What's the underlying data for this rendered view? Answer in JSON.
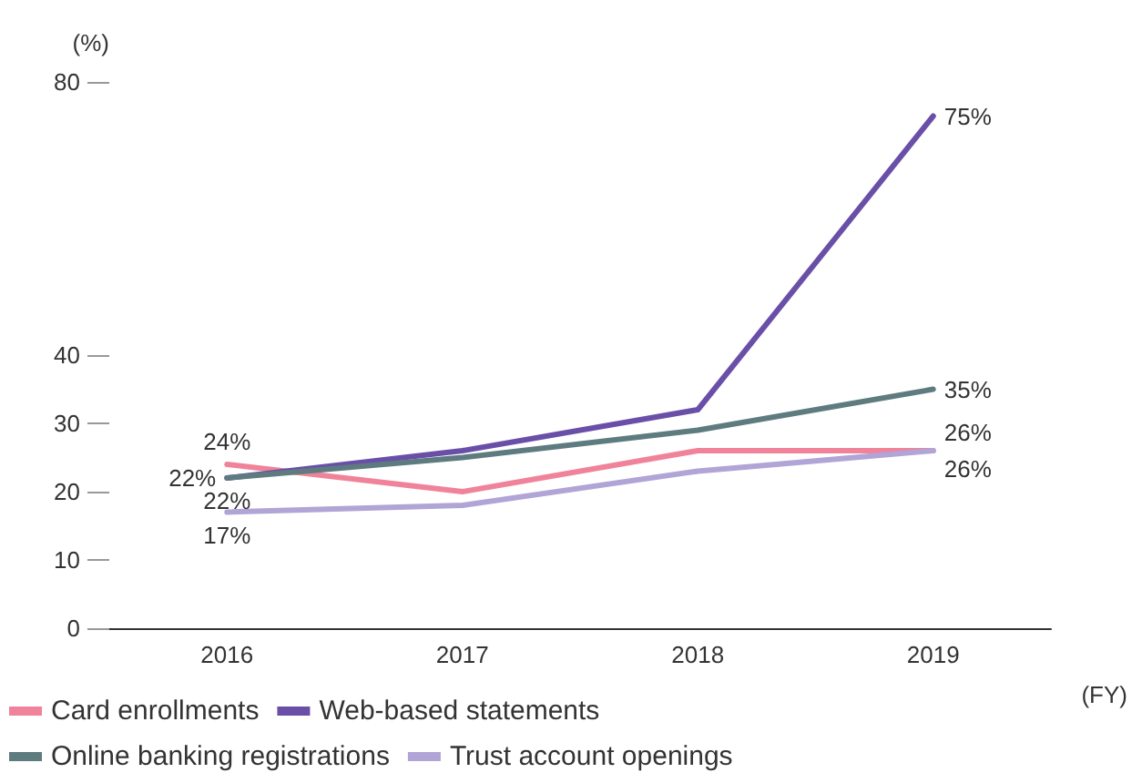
{
  "chart_data": {
    "type": "line",
    "ylabel": "(%)",
    "xlabel": "(FY)",
    "categories": [
      "2016",
      "2017",
      "2018",
      "2019"
    ],
    "series": [
      {
        "name": "Card enrollments",
        "color": "#f08399",
        "values": [
          24,
          20,
          26,
          26
        ],
        "value_labels": [
          "24%",
          null,
          null,
          "26%"
        ]
      },
      {
        "name": "Web-based statements",
        "color": "#6a4fa8",
        "values": [
          22,
          26,
          32,
          75
        ],
        "value_labels": [
          "22%",
          null,
          null,
          "75%"
        ]
      },
      {
        "name": "Online banking registrations",
        "color": "#5e7b80",
        "values": [
          22,
          25,
          29,
          35
        ],
        "value_labels": [
          "22%",
          null,
          null,
          "35%"
        ]
      },
      {
        "name": "Trust account openings",
        "color": "#b1a4d6",
        "values": [
          17,
          18,
          23,
          26
        ],
        "value_labels": [
          "17%",
          null,
          null,
          "26%"
        ]
      }
    ],
    "ylim": [
      0,
      80
    ],
    "yticks": [
      0,
      10,
      20,
      30,
      40,
      80
    ],
    "grid": false,
    "legend": "bottom",
    "marker": "none",
    "line_style": "solid"
  }
}
